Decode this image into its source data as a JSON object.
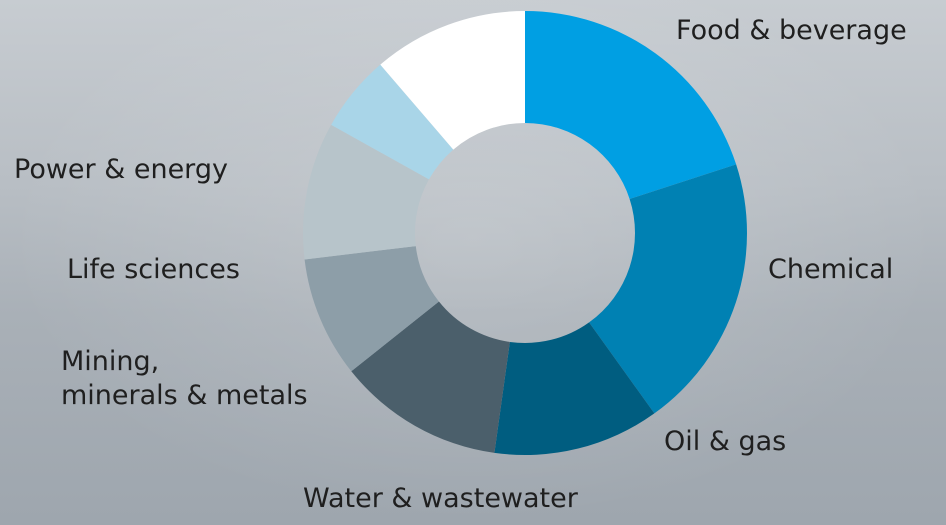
{
  "chart_data": {
    "type": "pie",
    "donut": true,
    "legend": "none",
    "slices": [
      {
        "label": "Food & beverage",
        "value": 20.0,
        "color": "#009fe3"
      },
      {
        "label": "Chemical",
        "value": 20.1,
        "color": "#0081b3"
      },
      {
        "label": "Oil & gas",
        "value": 12.1,
        "color": "#005d80"
      },
      {
        "label": "Water & wastewater",
        "value": 12.1,
        "color": "#4b5f6b"
      },
      {
        "label": "Mining, minerals & metals",
        "value": 8.8,
        "color": "#8d9ea8"
      },
      {
        "label": "Life sciences",
        "value": 10.0,
        "color": "#b7c4ca"
      },
      {
        "label": "Power & energy",
        "value": 5.6,
        "color": "#a9d5e8"
      },
      {
        "label": "",
        "value": 11.3,
        "color": "#ffffff"
      }
    ]
  },
  "labels": {
    "food": "Food & beverage",
    "chemical": "Chemical",
    "oil": "Oil & gas",
    "water": "Water & wastewater",
    "mining_1": "Mining,",
    "mining_2": "minerals & metals",
    "life": "Life sciences",
    "power": "Power & energy"
  }
}
